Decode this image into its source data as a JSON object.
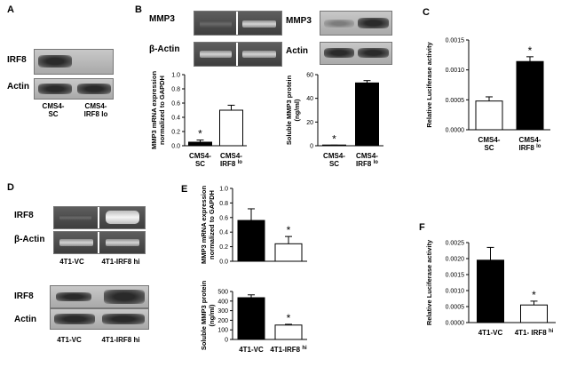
{
  "panels": {
    "A": {
      "letter": "A",
      "blot_labels": [
        "IRF8",
        "Actin"
      ],
      "lanes": [
        "CMS4-\nSC",
        "CMS4-\nIRF8 lo"
      ]
    },
    "B": {
      "letter": "B",
      "gel_labels": [
        "MMP3",
        "β-Actin"
      ],
      "wb_labels": [
        "MMP3",
        "Actin"
      ]
    },
    "C": {
      "letter": "C"
    },
    "D": {
      "letter": "D",
      "gel_labels": [
        "IRF8",
        "β-Actin"
      ],
      "gel_lanes": [
        "4T1-VC",
        "4T1-IRF8 hi"
      ],
      "wb_labels": [
        "IRF8",
        "Actin"
      ],
      "wb_lanes": [
        "4T1-VC",
        "4T1-IRF8 hi"
      ]
    },
    "E": {
      "letter": "E"
    },
    "F": {
      "letter": "F"
    }
  },
  "chart_data": [
    {
      "id": "B1",
      "type": "bar",
      "categories": [
        "CMS4-\nSC",
        "CMS4-\nIRF8 lo"
      ],
      "values": [
        0.05,
        0.5
      ],
      "errors": [
        0.03,
        0.07
      ],
      "fills": [
        "#000000",
        "#ffffff"
      ],
      "asterisk": [
        true,
        false
      ],
      "ylabel": "MMP3 mRNA expression\nnormalized to GAPDH",
      "ylim": [
        0,
        1.0
      ],
      "yticks": [
        0.0,
        0.2,
        0.4,
        0.6,
        0.8,
        1.0
      ],
      "ytick_labels": [
        "0.0",
        "0.2",
        "0.4",
        "0.6",
        "0.8",
        "1.0"
      ]
    },
    {
      "id": "B2",
      "type": "bar",
      "categories": [
        "CMS4-\nSC",
        "CMS4-\nIRF8 lo"
      ],
      "values": [
        0.3,
        53
      ],
      "errors": [
        0.2,
        2
      ],
      "fills": [
        "#ffffff",
        "#000000"
      ],
      "asterisk": [
        true,
        false
      ],
      "ylabel": "Soluble MMP3 protein\n(ng/ml)",
      "ylim": [
        0,
        60
      ],
      "yticks": [
        0,
        20,
        40,
        60
      ],
      "ytick_labels": [
        "0",
        "20",
        "40",
        "60"
      ]
    },
    {
      "id": "C",
      "type": "bar",
      "categories": [
        "CMS4-\nSC",
        "CMS4-\nIRF8 lo"
      ],
      "values": [
        0.00048,
        0.00114
      ],
      "errors": [
        7e-05,
        8e-05
      ],
      "fills": [
        "#ffffff",
        "#000000"
      ],
      "asterisk": [
        false,
        true
      ],
      "ylabel": "Relative Luciferase activity",
      "ylim": [
        0,
        0.0015
      ],
      "yticks": [
        0,
        0.0005,
        0.001,
        0.0015
      ],
      "ytick_labels": [
        "0.0000",
        "0.0005",
        "0.0010",
        "0.0015"
      ]
    },
    {
      "id": "E1",
      "type": "bar",
      "categories": [
        "",
        ""
      ],
      "values": [
        0.56,
        0.24
      ],
      "errors": [
        0.16,
        0.1
      ],
      "fills": [
        "#000000",
        "#ffffff"
      ],
      "asterisk": [
        false,
        true
      ],
      "ylabel": "MMP3 mRNA expression\nnormalized to GAPDH",
      "ylim": [
        0,
        1.0
      ],
      "yticks": [
        0.0,
        0.2,
        0.4,
        0.6,
        0.8,
        1.0
      ],
      "ytick_labels": [
        "0.0",
        "0.2",
        "0.4",
        "0.6",
        "0.8",
        "1.0"
      ]
    },
    {
      "id": "E2",
      "type": "bar",
      "categories": [
        "4T1-VC",
        "4T1-IRF8 hi"
      ],
      "values": [
        435,
        150
      ],
      "errors": [
        30,
        8
      ],
      "fills": [
        "#000000",
        "#ffffff"
      ],
      "asterisk": [
        false,
        true
      ],
      "ylabel": "Soluble MMP3 protein\n(ng/ml)",
      "ylim": [
        0,
        500
      ],
      "yticks": [
        0,
        100,
        200,
        300,
        400,
        500
      ],
      "ytick_labels": [
        "0",
        "100",
        "200",
        "300",
        "400",
        "500"
      ]
    },
    {
      "id": "F",
      "type": "bar",
      "categories": [
        "4T1-VC",
        "4T1- IRF8 hi"
      ],
      "values": [
        0.00195,
        0.00055
      ],
      "errors": [
        0.0004,
        0.00012
      ],
      "fills": [
        "#000000",
        "#ffffff"
      ],
      "asterisk": [
        false,
        true
      ],
      "ylabel": "Relative Luciferase activity",
      "ylim": [
        0,
        0.0025
      ],
      "yticks": [
        0,
        0.0005,
        0.001,
        0.0015,
        0.002,
        0.0025
      ],
      "ytick_labels": [
        "0.0000",
        "0.0005",
        "0.0010",
        "0.0015",
        "0.0020",
        "0.0025"
      ]
    }
  ]
}
